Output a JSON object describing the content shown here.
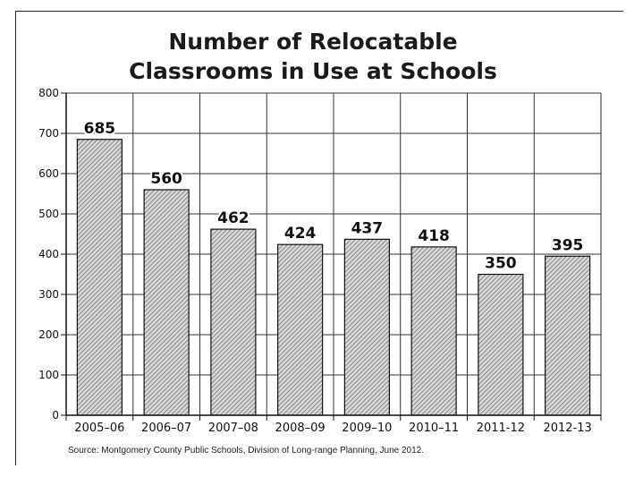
{
  "title_lines": [
    "Number of Relocatable",
    "Classrooms in Use at Schools"
  ],
  "source": "Source: Montgomery County Public Schools, Division of Long-range Planning, June 2012.",
  "chart_data": {
    "type": "bar",
    "title": "Number of Relocatable Classrooms in Use at Schools",
    "xlabel": "",
    "ylabel": "",
    "categories": [
      "2005–06",
      "2006–07",
      "2007–08",
      "2008–09",
      "2009–10",
      "2010–11",
      "2011-12",
      "2012-13"
    ],
    "values": [
      685,
      560,
      462,
      424,
      437,
      418,
      350,
      395
    ],
    "ylim": [
      0,
      800
    ],
    "yticks": [
      0,
      100,
      200,
      300,
      400,
      500,
      600,
      700,
      800
    ],
    "grid": true,
    "legend": "none",
    "data_labels": true,
    "bar_fill": "hatched gray",
    "colors": {
      "bar_fill": "#d0d0d0",
      "bar_hatch": "#8a8a8a",
      "axis": "#111111",
      "grid": "#222222"
    }
  }
}
